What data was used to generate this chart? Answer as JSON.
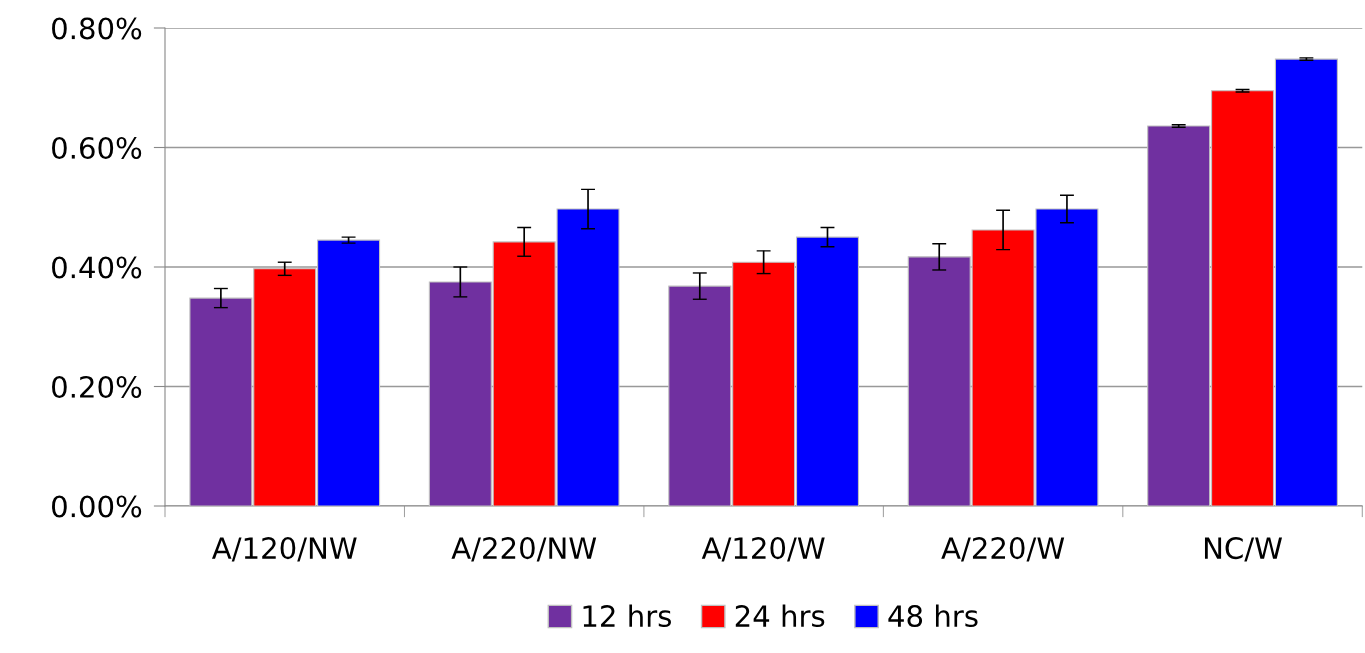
{
  "chart_data": {
    "type": "bar",
    "categories": [
      "A/120/NW",
      "A/220/NW",
      "A/120/W",
      "A/220/W",
      "NC/W"
    ],
    "series": [
      {
        "name": "12 hrs",
        "color": "#7030a0",
        "values": [
          0.348,
          0.375,
          0.368,
          0.417,
          0.636
        ],
        "errors": [
          0.016,
          0.025,
          0.022,
          0.022,
          0.002
        ]
      },
      {
        "name": "24 hrs",
        "color": "#ff0000",
        "values": [
          0.397,
          0.442,
          0.408,
          0.462,
          0.695
        ],
        "errors": [
          0.011,
          0.024,
          0.019,
          0.033,
          0.002
        ]
      },
      {
        "name": "48 hrs",
        "color": "#0000ff",
        "values": [
          0.445,
          0.497,
          0.45,
          0.497,
          0.748
        ],
        "errors": [
          0.005,
          0.033,
          0.016,
          0.023,
          0.002
        ]
      }
    ],
    "ylim": [
      0,
      0.8
    ],
    "yticks": [
      {
        "value": 0,
        "label": "0.00%"
      },
      {
        "value": 0.2,
        "label": "0.20%"
      },
      {
        "value": 0.4,
        "label": "0.40%"
      },
      {
        "value": 0.6,
        "label": "0.60%"
      },
      {
        "value": 0.8,
        "label": "0.80%"
      }
    ],
    "grid": "y",
    "legend": "bottom"
  }
}
